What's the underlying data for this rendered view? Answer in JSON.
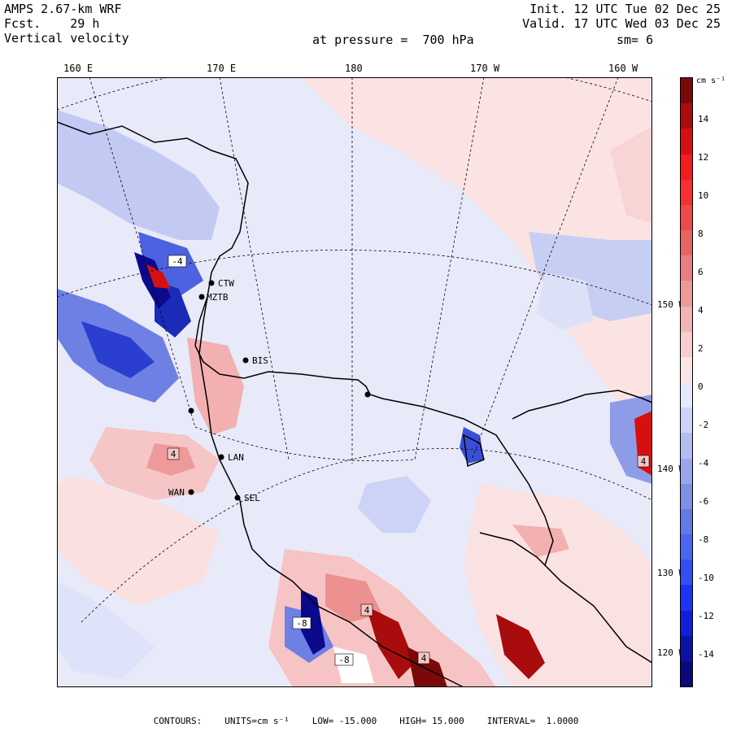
{
  "header": {
    "model": "AMPS 2.67-km WRF",
    "fcst_label": "Fcst.",
    "fcst_value": "29 h",
    "variable": "Vertical velocity",
    "init": "Init. 12 UTC Tue 02 Dec 25",
    "valid": "Valid. 17 UTC Wed 03 Dec 25",
    "level": "at pressure =  700 hPa",
    "smooth": "sm= 6"
  },
  "longitude_labels": [
    "160 E",
    "170 E",
    "180",
    "170 W",
    "160 W"
  ],
  "latitude_labels": [
    "150 W",
    "140 W",
    "130 W",
    "120 W"
  ],
  "stations": [
    {
      "id": "CTW",
      "label": "CTW"
    },
    {
      "id": "MZTB",
      "label": "MZTB"
    },
    {
      "id": "BIS",
      "label": "BIS"
    },
    {
      "id": "LAN",
      "label": "LAN"
    },
    {
      "id": "WAN",
      "label": "WAN"
    },
    {
      "id": "SEL",
      "label": "SEL"
    }
  ],
  "extrema_labels": [
    "-4",
    "-8",
    "-8",
    "4",
    "4",
    "4",
    "4"
  ],
  "colorbar": {
    "units": "cm s⁻¹",
    "tick_labels": [
      "14",
      "12",
      "10",
      "8",
      "6",
      "4",
      "2",
      "0",
      "-2",
      "-4",
      "-6",
      "-8",
      "-10",
      "-12",
      "-14"
    ],
    "colors": [
      "#0a0a7a",
      "#0c12a8",
      "#1020d6",
      "#1c34f4",
      "#3050f4",
      "#4a66ee",
      "#6478e6",
      "#7f8fe6",
      "#9aa6ec",
      "#b4bdf2",
      "#cdd3f7",
      "#e6e9fb",
      "#fbe6e6",
      "#f7cdcd",
      "#f2b4b4",
      "#eb9a9a",
      "#e67f7f",
      "#e66464",
      "#ee4a4a",
      "#f43030",
      "#f41c1c",
      "#d61010",
      "#a80c0c",
      "#7a0a0a"
    ]
  },
  "footer": {
    "contours": "CONTOURS:",
    "units": "UNITS=cm s⁻¹",
    "low": "LOW= -15.000",
    "high": "HIGH= 15.000",
    "interval": "INTERVAL=  1.0000"
  }
}
